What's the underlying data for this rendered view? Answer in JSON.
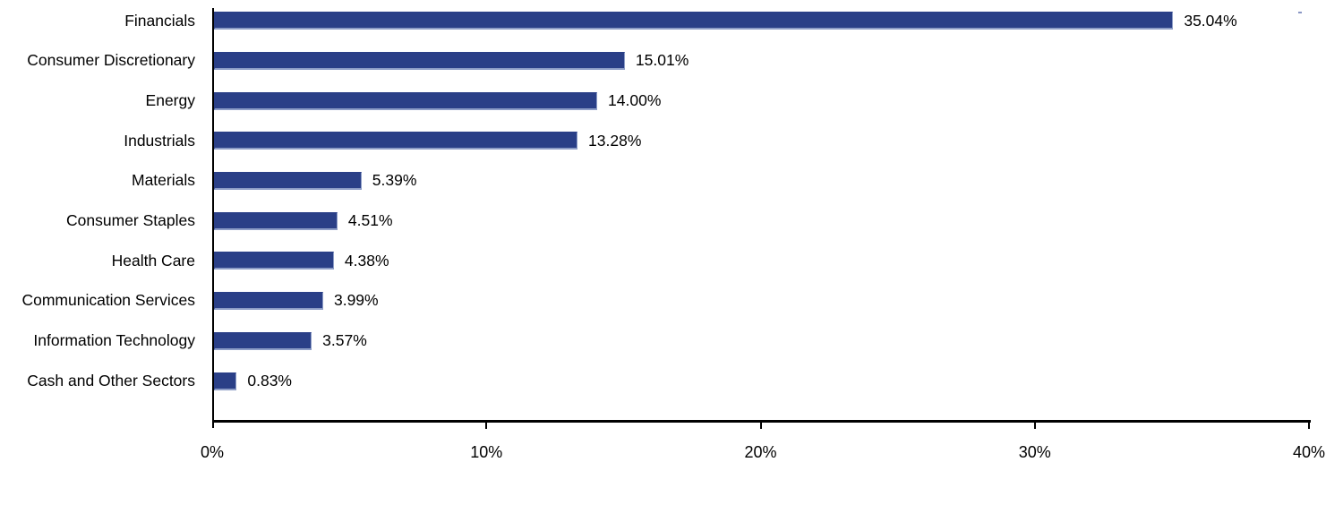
{
  "chart_data": {
    "type": "bar",
    "orientation": "horizontal",
    "title": "",
    "xlabel": "",
    "ylabel": "",
    "categories": [
      "Financials",
      "Consumer Discretionary",
      "Energy",
      "Industrials",
      "Materials",
      "Consumer Staples",
      "Health Care",
      "Communication Services",
      "Information Technology",
      "Cash and Other Sectors"
    ],
    "values": [
      35.04,
      15.01,
      14.0,
      13.28,
      5.39,
      4.51,
      4.38,
      3.99,
      3.57,
      0.83
    ],
    "value_labels": [
      "35.04%",
      "15.01%",
      "14.00%",
      "13.28%",
      "5.39%",
      "4.51%",
      "4.38%",
      "3.99%",
      "3.57%",
      "0.83%"
    ],
    "xlim": [
      0,
      40
    ],
    "x_ticks": [
      0,
      10,
      20,
      30,
      40
    ],
    "x_tick_labels": [
      "0%",
      "10%",
      "20%",
      "30%",
      "40%"
    ],
    "grid": "off",
    "legend": "none",
    "bar_color": "#2A3F87",
    "bar_edge_color": "#8C9CC6",
    "axis_color": "#000000",
    "text_color": "#000000"
  }
}
